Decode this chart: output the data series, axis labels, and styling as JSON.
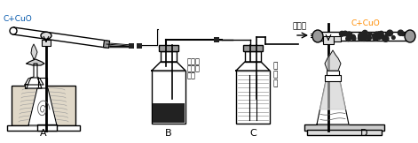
{
  "bg_color": "#ffffff",
  "lc": "#000000",
  "label_A": "A",
  "label_B": "B",
  "label_C": "C",
  "label_D": "D",
  "text_CuO_A": "C+CuO",
  "text_CuO_D": "C+CuO",
  "text_B_line1": "湿润的",
  "text_B_line2": "氯化钒",
  "text_B_line3": "试纸",
  "text_C_line1": "某",
  "text_C_line2": "溶",
  "text_C_line3": "液",
  "text_arrow": "某气体",
  "orange_color": "#FF8C00",
  "blue_color": "#0055aa",
  "gray_dark": "#555555",
  "gray_mid": "#999999",
  "gray_light": "#cccccc",
  "gray_fill": "#dddddd",
  "black_fill": "#222222",
  "wood_color": "#e0d8c8"
}
